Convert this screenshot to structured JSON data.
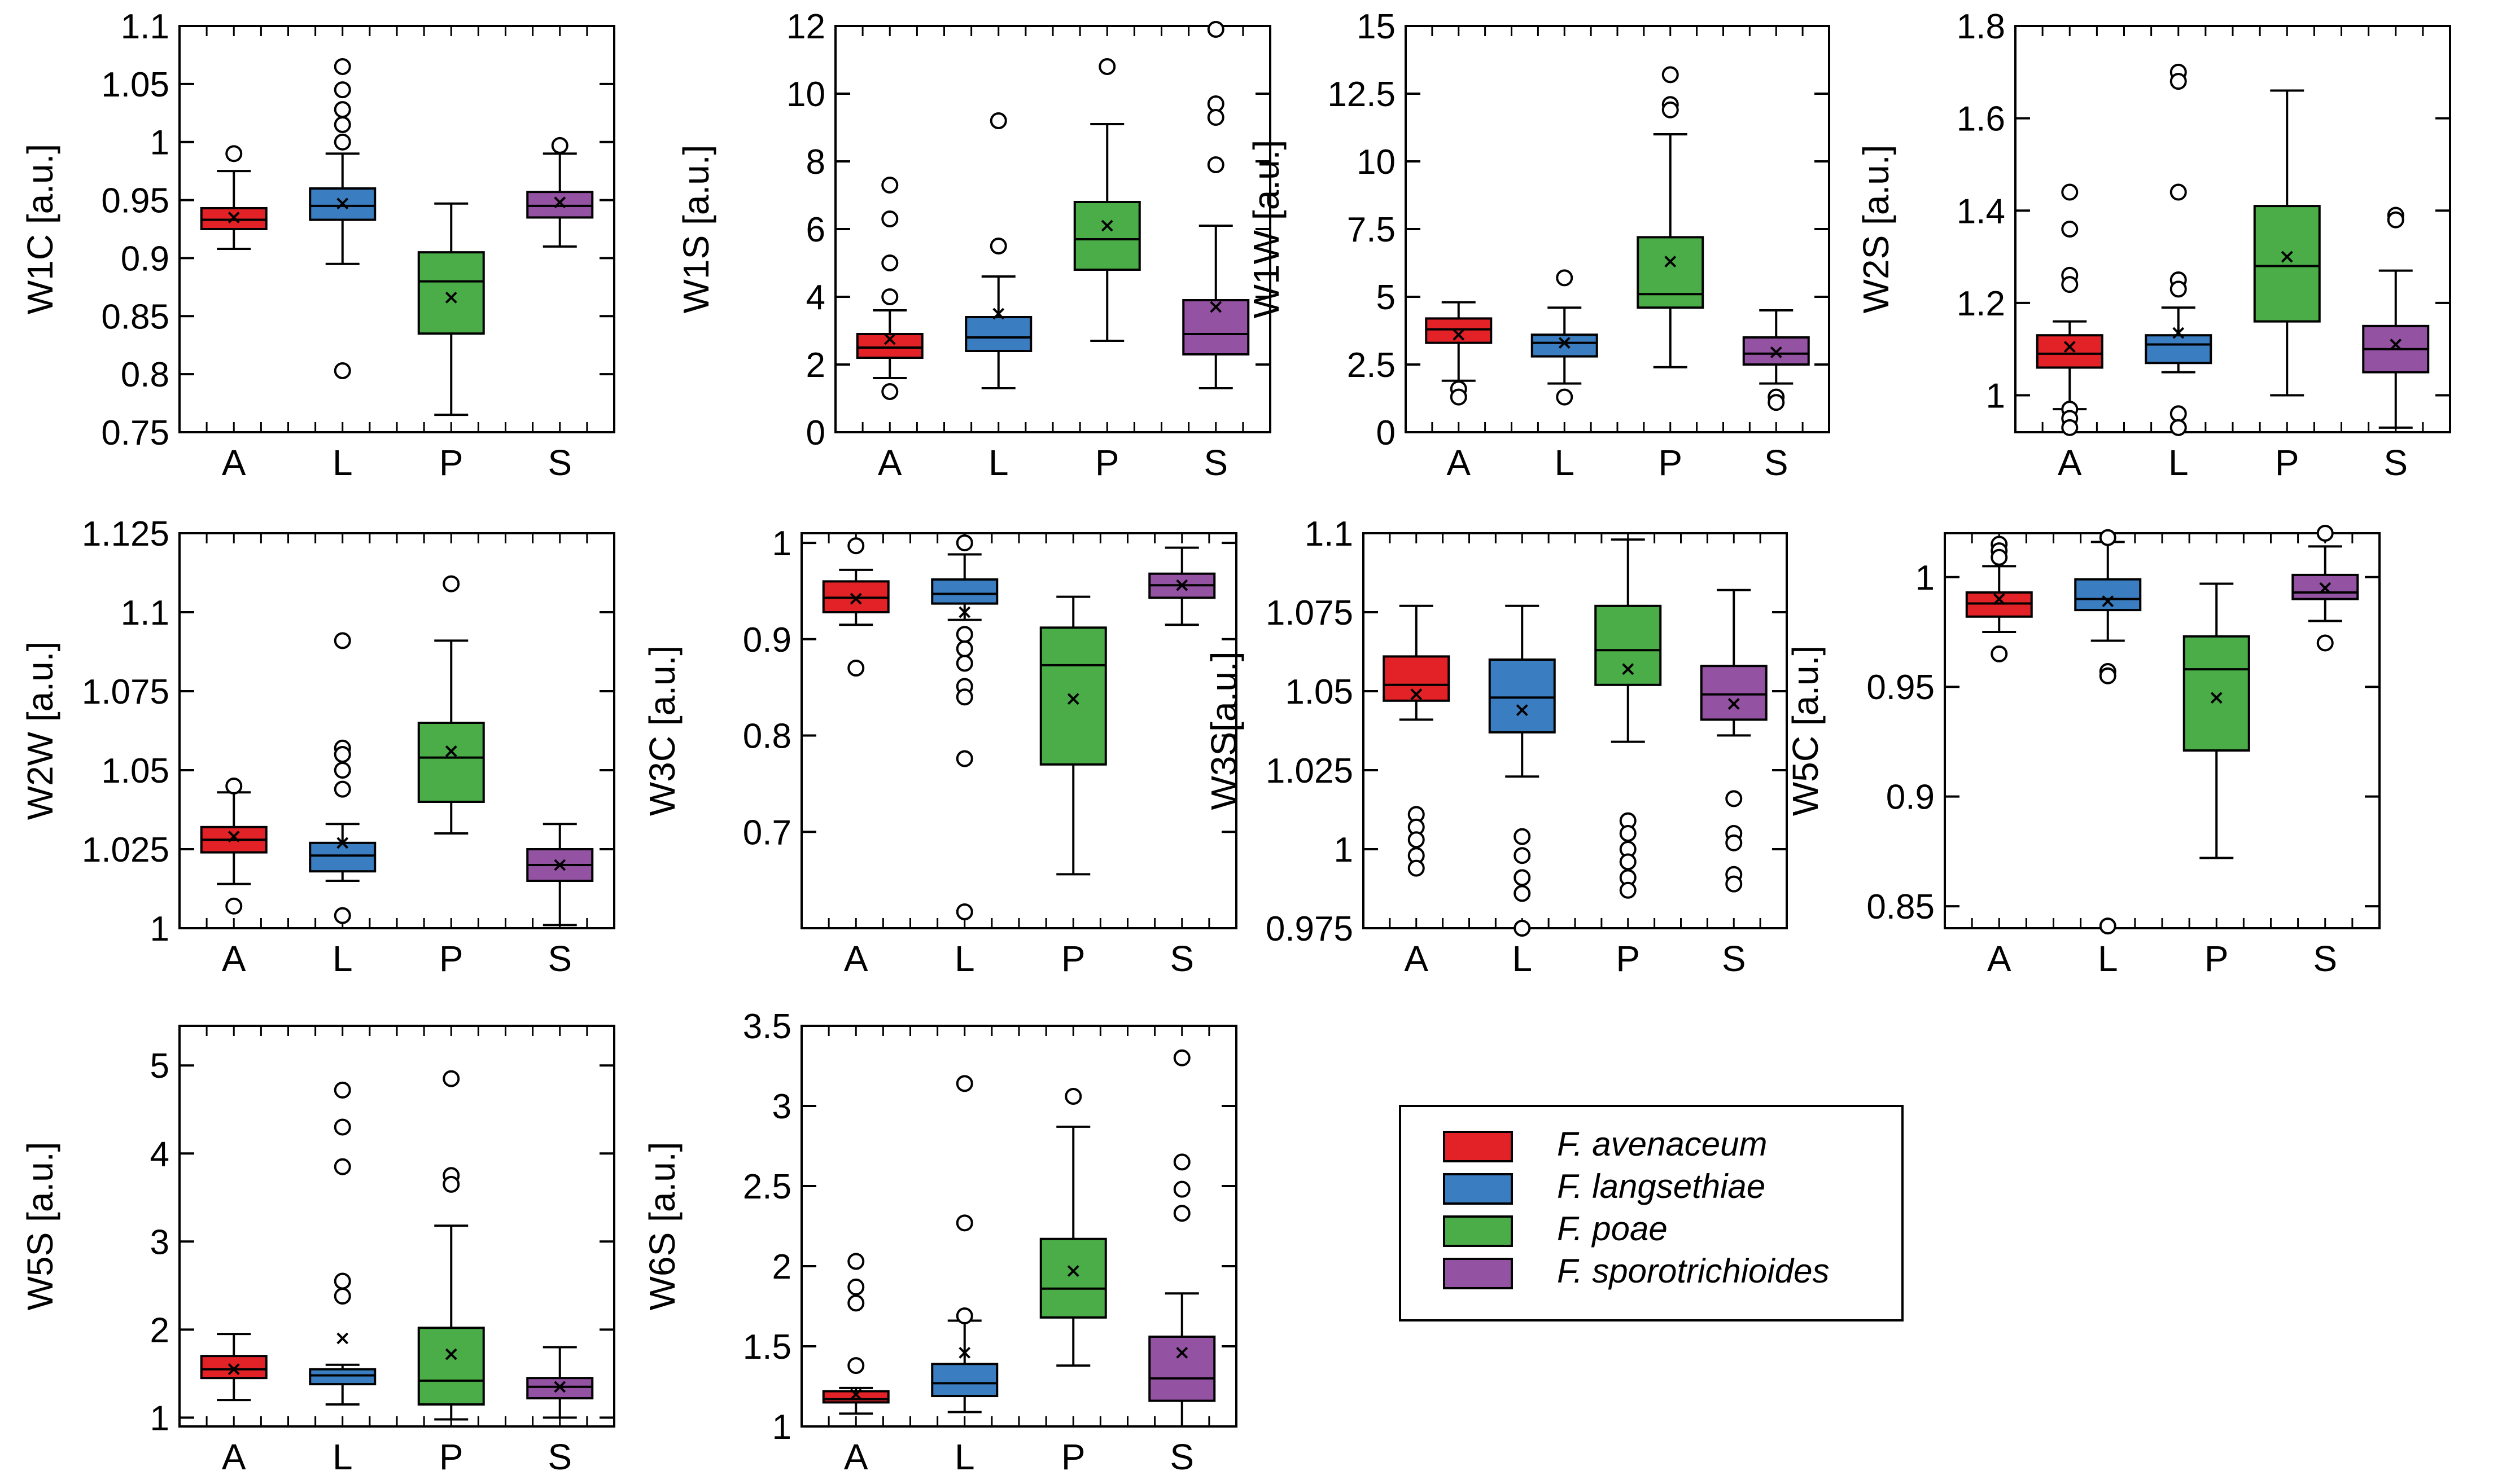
{
  "colors": {
    "A": "#e32227",
    "L": "#3a7dc0",
    "P": "#4aad48",
    "S": "#9452a3",
    "stroke": "#000000"
  },
  "legend": [
    {
      "key": "A",
      "label": "F. avenaceum"
    },
    {
      "key": "L",
      "label": "F. langsethiae"
    },
    {
      "key": "P",
      "label": "F. poae"
    },
    {
      "key": "S",
      "label": "F. sporotrichioides"
    }
  ],
  "chart_data": [
    {
      "type": "box",
      "ylabel": "W1C [a.u.]",
      "ylim": [
        0.75,
        1.1
      ],
      "ticks": [
        "0.75",
        "0.8",
        "0.85",
        "0.9",
        "0.95",
        "1",
        "1.05",
        "1.1"
      ],
      "categories": [
        "A",
        "L",
        "P",
        "S"
      ],
      "boxes": [
        {
          "q1": 0.925,
          "median": 0.933,
          "q3": 0.943,
          "low": 0.908,
          "high": 0.975,
          "mean": 0.935,
          "outliers": [
            0.99
          ]
        },
        {
          "q1": 0.933,
          "median": 0.945,
          "q3": 0.96,
          "low": 0.895,
          "high": 0.99,
          "mean": 0.947,
          "outliers": [
            1.065,
            1.045,
            1.028,
            1.015,
            1.0,
            0.803
          ]
        },
        {
          "q1": 0.835,
          "median": 0.88,
          "q3": 0.905,
          "low": 0.765,
          "high": 0.947,
          "mean": 0.866,
          "outliers": []
        },
        {
          "q1": 0.935,
          "median": 0.945,
          "q3": 0.957,
          "low": 0.91,
          "high": 0.99,
          "mean": 0.948,
          "outliers": [
            0.997
          ]
        }
      ]
    },
    {
      "type": "box",
      "ylabel": "W1S [a.u.]",
      "ylim": [
        0,
        12
      ],
      "ticks": [
        "0",
        "2",
        "4",
        "6",
        "8",
        "10",
        "12"
      ],
      "categories": [
        "A",
        "L",
        "P",
        "S"
      ],
      "boxes": [
        {
          "q1": 2.2,
          "median": 2.5,
          "q3": 2.9,
          "low": 1.6,
          "high": 3.6,
          "mean": 2.75,
          "outliers": [
            7.3,
            6.3,
            5.0,
            4.0,
            1.2
          ]
        },
        {
          "q1": 2.4,
          "median": 2.8,
          "q3": 3.4,
          "low": 1.3,
          "high": 4.6,
          "mean": 3.5,
          "outliers": [
            9.2,
            5.5
          ]
        },
        {
          "q1": 4.8,
          "median": 5.7,
          "q3": 6.8,
          "low": 2.7,
          "high": 9.1,
          "mean": 6.1,
          "outliers": [
            10.8
          ]
        },
        {
          "q1": 2.3,
          "median": 2.9,
          "q3": 3.9,
          "low": 1.3,
          "high": 6.1,
          "mean": 3.7,
          "outliers": [
            11.9,
            9.7,
            9.3,
            7.9
          ]
        }
      ]
    },
    {
      "type": "box",
      "ylabel": "W1W [a.u.]",
      "ylim": [
        0,
        15
      ],
      "ticks": [
        "0",
        "2.5",
        "5",
        "7.5",
        "10",
        "12.5",
        "15"
      ],
      "categories": [
        "A",
        "L",
        "P",
        "S"
      ],
      "boxes": [
        {
          "q1": 3.3,
          "median": 3.8,
          "q3": 4.2,
          "low": 1.9,
          "high": 4.8,
          "mean": 3.6,
          "outliers": [
            1.6,
            1.3
          ]
        },
        {
          "q1": 2.8,
          "median": 3.3,
          "q3": 3.6,
          "low": 1.8,
          "high": 4.6,
          "mean": 3.3,
          "outliers": [
            5.7,
            1.3
          ]
        },
        {
          "q1": 4.6,
          "median": 5.1,
          "q3": 7.2,
          "low": 2.4,
          "high": 11.0,
          "mean": 6.3,
          "outliers": [
            13.2,
            12.1,
            11.9
          ]
        },
        {
          "q1": 2.5,
          "median": 2.9,
          "q3": 3.5,
          "low": 1.8,
          "high": 4.5,
          "mean": 2.95,
          "outliers": [
            1.3,
            1.1
          ]
        }
      ]
    },
    {
      "type": "box",
      "ylabel": "W2S [a.u.]",
      "ylim": [
        0.92,
        1.8
      ],
      "ticks": [
        "1",
        "1.2",
        "1.4",
        "1.6",
        "1.8"
      ],
      "categories": [
        "A",
        "L",
        "P",
        "S"
      ],
      "boxes": [
        {
          "q1": 1.06,
          "median": 1.09,
          "q3": 1.13,
          "low": 0.97,
          "high": 1.16,
          "mean": 1.105,
          "outliers": [
            1.44,
            1.36,
            1.26,
            1.24,
            0.97,
            0.95,
            0.93
          ]
        },
        {
          "q1": 1.07,
          "median": 1.11,
          "q3": 1.13,
          "low": 1.05,
          "high": 1.19,
          "mean": 1.135,
          "outliers": [
            1.7,
            1.68,
            1.44,
            1.25,
            1.23,
            0.96,
            0.93
          ]
        },
        {
          "q1": 1.16,
          "median": 1.28,
          "q3": 1.41,
          "low": 1.0,
          "high": 1.66,
          "mean": 1.3,
          "outliers": []
        },
        {
          "q1": 1.05,
          "median": 1.1,
          "q3": 1.15,
          "low": 0.93,
          "high": 1.27,
          "mean": 1.11,
          "outliers": [
            1.39,
            1.38
          ]
        }
      ]
    },
    {
      "type": "box",
      "ylabel": "W2W [a.u.]",
      "ylim": [
        1.0,
        1.125
      ],
      "ticks": [
        "1",
        "1.025",
        "1.05",
        "1.075",
        "1.1",
        "1.125"
      ],
      "categories": [
        "A",
        "L",
        "P",
        "S"
      ],
      "boxes": [
        {
          "q1": 1.024,
          "median": 1.028,
          "q3": 1.032,
          "low": 1.014,
          "high": 1.043,
          "mean": 1.029,
          "outliers": [
            1.045,
            1.007
          ]
        },
        {
          "q1": 1.018,
          "median": 1.023,
          "q3": 1.027,
          "low": 1.015,
          "high": 1.033,
          "mean": 1.027,
          "outliers": [
            1.091,
            1.057,
            1.055,
            1.05,
            1.044,
            1.004
          ]
        },
        {
          "q1": 1.04,
          "median": 1.054,
          "q3": 1.065,
          "low": 1.03,
          "high": 1.091,
          "mean": 1.056,
          "outliers": [
            1.109
          ]
        },
        {
          "q1": 1.015,
          "median": 1.02,
          "q3": 1.025,
          "low": 1.001,
          "high": 1.033,
          "mean": 1.02,
          "outliers": []
        }
      ]
    },
    {
      "type": "box",
      "ylabel": "W3C [a.u.]",
      "ylim": [
        0.6,
        1.01
      ],
      "ticks": [
        "0.7",
        "0.8",
        "0.9",
        "1"
      ],
      "categories": [
        "A",
        "L",
        "P",
        "S"
      ],
      "boxes": [
        {
          "q1": 0.928,
          "median": 0.943,
          "q3": 0.96,
          "low": 0.915,
          "high": 0.972,
          "mean": 0.942,
          "outliers": [
            0.997,
            0.87
          ]
        },
        {
          "q1": 0.937,
          "median": 0.947,
          "q3": 0.962,
          "low": 0.92,
          "high": 0.988,
          "mean": 0.928,
          "outliers": [
            1.0,
            0.905,
            0.89,
            0.875,
            0.851,
            0.84,
            0.776,
            0.617
          ]
        },
        {
          "q1": 0.77,
          "median": 0.873,
          "q3": 0.912,
          "low": 0.656,
          "high": 0.944,
          "mean": 0.838,
          "outliers": []
        },
        {
          "q1": 0.943,
          "median": 0.956,
          "q3": 0.968,
          "low": 0.915,
          "high": 0.995,
          "mean": 0.956,
          "outliers": []
        }
      ]
    },
    {
      "type": "box",
      "ylabel": "W3S[a.u.]",
      "ylim": [
        0.975,
        1.1
      ],
      "ticks": [
        "0.975",
        "1",
        "1.025",
        "1.05",
        "1.075",
        "1.1"
      ],
      "categories": [
        "A",
        "L",
        "P",
        "S"
      ],
      "boxes": [
        {
          "q1": 1.047,
          "median": 1.052,
          "q3": 1.061,
          "low": 1.041,
          "high": 1.077,
          "mean": 1.049,
          "outliers": [
            1.011,
            1.007,
            1.003,
            0.998,
            0.994
          ]
        },
        {
          "q1": 1.037,
          "median": 1.048,
          "q3": 1.06,
          "low": 1.023,
          "high": 1.077,
          "mean": 1.044,
          "outliers": [
            1.004,
            0.998,
            0.991,
            0.986,
            0.975
          ]
        },
        {
          "q1": 1.052,
          "median": 1.063,
          "q3": 1.077,
          "low": 1.034,
          "high": 1.098,
          "mean": 1.057,
          "outliers": [
            1.009,
            1.005,
            1.0,
            0.996,
            0.991,
            0.987
          ]
        },
        {
          "q1": 1.041,
          "median": 1.049,
          "q3": 1.058,
          "low": 1.036,
          "high": 1.082,
          "mean": 1.046,
          "outliers": [
            1.016,
            1.005,
            1.002,
            0.992,
            0.989
          ]
        }
      ]
    },
    {
      "type": "box",
      "ylabel": "W5C [a.u.]",
      "ylim": [
        0.84,
        1.02
      ],
      "ticks": [
        "0.85",
        "0.9",
        "0.95",
        "1"
      ],
      "categories": [
        "A",
        "L",
        "P",
        "S"
      ],
      "boxes": [
        {
          "q1": 0.982,
          "median": 0.988,
          "q3": 0.993,
          "low": 0.975,
          "high": 1.005,
          "mean": 0.99,
          "outliers": [
            1.015,
            1.012,
            1.009,
            0.965
          ]
        },
        {
          "q1": 0.985,
          "median": 0.99,
          "q3": 0.999,
          "low": 0.971,
          "high": 1.016,
          "mean": 0.989,
          "outliers": [
            1.018,
            0.957,
            0.955,
            0.841
          ]
        },
        {
          "q1": 0.921,
          "median": 0.958,
          "q3": 0.973,
          "low": 0.872,
          "high": 0.997,
          "mean": 0.945,
          "outliers": []
        },
        {
          "q1": 0.99,
          "median": 0.993,
          "q3": 1.001,
          "low": 0.98,
          "high": 1.014,
          "mean": 0.995,
          "outliers": [
            1.02,
            0.97
          ]
        }
      ]
    },
    {
      "type": "box",
      "ylabel": "W5S [a.u.]",
      "ylim": [
        0.9,
        5.45
      ],
      "ticks": [
        "1",
        "2",
        "3",
        "4",
        "5"
      ],
      "categories": [
        "A",
        "L",
        "P",
        "S"
      ],
      "boxes": [
        {
          "q1": 1.45,
          "median": 1.55,
          "q3": 1.7,
          "low": 1.2,
          "high": 1.95,
          "mean": 1.55,
          "outliers": []
        },
        {
          "q1": 1.38,
          "median": 1.48,
          "q3": 1.55,
          "low": 1.15,
          "high": 1.6,
          "mean": 1.9,
          "outliers": [
            4.72,
            4.3,
            3.85,
            2.55,
            2.38
          ]
        },
        {
          "q1": 1.15,
          "median": 1.42,
          "q3": 2.02,
          "low": 0.98,
          "high": 3.18,
          "mean": 1.72,
          "outliers": [
            4.85,
            3.75,
            3.65
          ]
        },
        {
          "q1": 1.22,
          "median": 1.35,
          "q3": 1.45,
          "low": 1.0,
          "high": 1.8,
          "mean": 1.35,
          "outliers": []
        }
      ]
    },
    {
      "type": "box",
      "ylabel": "W6S [a.u.]",
      "ylim": [
        1.0,
        3.5
      ],
      "ticks": [
        "1",
        "1.5",
        "2",
        "2.5",
        "3",
        "3.5"
      ],
      "categories": [
        "A",
        "L",
        "P",
        "S"
      ],
      "boxes": [
        {
          "q1": 1.15,
          "median": 1.17,
          "q3": 1.22,
          "low": 1.08,
          "high": 1.24,
          "mean": 1.2,
          "outliers": [
            2.03,
            1.87,
            1.77,
            1.38
          ]
        },
        {
          "q1": 1.19,
          "median": 1.27,
          "q3": 1.39,
          "low": 1.09,
          "high": 1.66,
          "mean": 1.46,
          "outliers": [
            3.14,
            2.27,
            1.69
          ]
        },
        {
          "q1": 1.68,
          "median": 1.86,
          "q3": 2.17,
          "low": 1.38,
          "high": 2.87,
          "mean": 1.97,
          "outliers": [
            3.06
          ]
        },
        {
          "q1": 1.16,
          "median": 1.3,
          "q3": 1.56,
          "low": 1.0,
          "high": 1.83,
          "mean": 1.46,
          "outliers": [
            3.3,
            2.65,
            2.48,
            2.33
          ]
        }
      ]
    }
  ]
}
